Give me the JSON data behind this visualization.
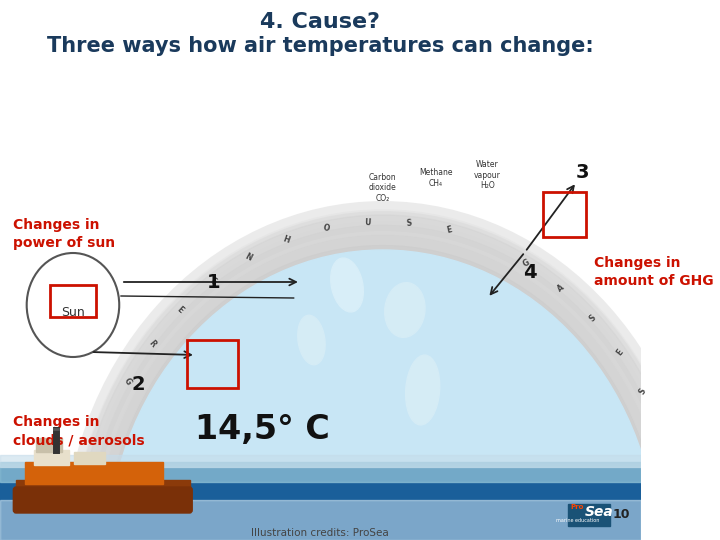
{
  "title_line1": "4. Cause?",
  "title_line2": "Three ways how air temperatures can change:",
  "title_color": "#1a3a5c",
  "title_fontsize": 16,
  "subtitle_fontsize": 15,
  "bg_color": "#ffffff",
  "label1": "Changes in\npower of sun",
  "label2": "Changes in\nclouds / aerosols",
  "label3": "Changes in\namount of GHG",
  "label_color": "#cc1100",
  "label_fontsize": 10,
  "num1": "1",
  "num2": "2",
  "num3": "3",
  "num4": "4",
  "num_color": "#111111",
  "num_fontsize": 14,
  "sun_label": "Sun",
  "sun_label_color": "#333333",
  "temp_text": "14,5° C",
  "temp_color": "#111111",
  "temp_fontsize": 24,
  "greenhouse_text": "G R E E N H O U S E   G A S E S",
  "greenhouse_color": "#444444",
  "co2_labels": [
    "Carbon\ndioxide\nCO₂",
    "Methane\nCH₄",
    "Water\nvapour\nH₂O"
  ],
  "footer_text": "Illustration credits: ProSea",
  "footer_num": "10",
  "footer_color": "#333333",
  "earth_color": "#c8e6f5",
  "earth_land_color": "#d0e8f0",
  "arrow_color": "#222222",
  "box_color": "#cc1100",
  "sun_circle_color": "#555555",
  "atmosphere_color": "#e0e0e0",
  "ocean_color": "#2a6faa",
  "ocean_top_color": "#a0c8e0"
}
